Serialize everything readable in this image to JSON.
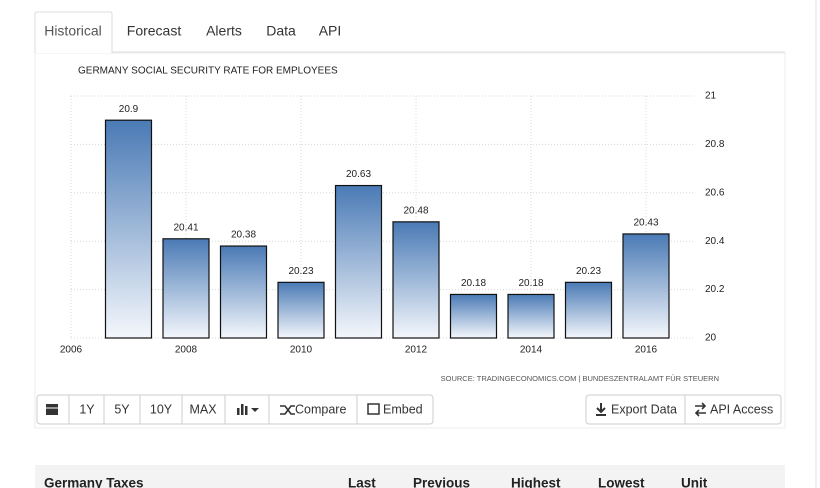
{
  "tabs": [
    "Historical",
    "Forecast",
    "Alerts",
    "Data",
    "API"
  ],
  "chart_data": {
    "type": "bar",
    "title": "GERMANY SOCIAL SECURITY RATE FOR EMPLOYEES",
    "x": [
      2007,
      2008,
      2009,
      2010,
      2011,
      2012,
      2013,
      2014,
      2015,
      2016
    ],
    "values": [
      20.9,
      20.41,
      20.38,
      20.23,
      20.63,
      20.48,
      20.18,
      20.18,
      20.23,
      20.43
    ],
    "color": "#4a7ab5",
    "xlim": [
      2006,
      2017
    ],
    "xticks": [
      2006,
      2008,
      2010,
      2012,
      2014,
      2016
    ],
    "ylim": [
      20,
      21
    ],
    "yticks": [
      20,
      20.2,
      20.4,
      20.6,
      20.8,
      21
    ],
    "grid": true,
    "source": "SOURCE: TRADINGECONOMICS.COM | BUNDESZENTRALAMT FÜR STEUERN"
  },
  "toolbar": {
    "ranges": [
      "1Y",
      "5Y",
      "10Y",
      "MAX"
    ],
    "compare": "Compare",
    "embed": "Embed",
    "export": "Export Data",
    "api": "API Access"
  },
  "table": {
    "title": "Germany Taxes",
    "columns": [
      "Last",
      "Previous",
      "Highest",
      "Lowest",
      "Unit"
    ]
  }
}
